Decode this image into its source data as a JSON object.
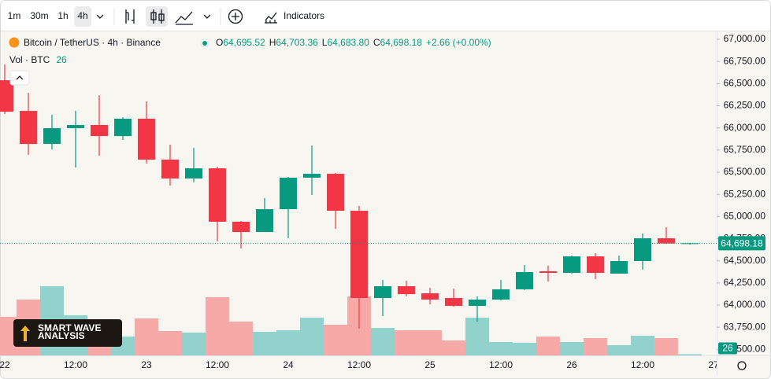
{
  "toolbar": {
    "intervals": [
      "1m",
      "30m",
      "1h",
      "4h"
    ],
    "indicators": "Indicators"
  },
  "chart_data": {
    "type": "candlestick",
    "title": "Bitcoin / TetherUS · 4h · Binance",
    "legend": {
      "o_key": "O",
      "o": "64,695.52",
      "h_key": "H",
      "h": "64,703.36",
      "l_key": "L",
      "l": "64,683.80",
      "c_key": "C",
      "c": "64,698.18",
      "change": "+2.66 (+0.00%)",
      "vol_label": "Vol · BTC"
    },
    "open": [
      66538,
      66192,
      65819,
      65997,
      66033,
      65908,
      66104,
      65642,
      65429,
      65544,
      64941,
      64825,
      65083,
      65438,
      65482,
      65065,
      64080,
      64213,
      64133,
      64080,
      63991,
      64062,
      64178,
      64382,
      64364,
      64550,
      64355,
      64497,
      64754,
      64695.52
    ],
    "high": [
      66716,
      66396,
      66148,
      66192,
      66370,
      66121,
      66299,
      65811,
      65775,
      65562,
      64950,
      65207,
      65447,
      65802,
      65491,
      65118,
      64284,
      64275,
      64195,
      64186,
      64098,
      64284,
      64453,
      64444,
      64559,
      64586,
      64559,
      64808,
      64880,
      64703.36
    ],
    "low": [
      66157,
      65695,
      65757,
      65553,
      65686,
      65864,
      65598,
      65349,
      65385,
      64719,
      64639,
      64825,
      64754,
      65243,
      64861,
      63734,
      63876,
      64098,
      64009,
      63982,
      63813,
      64053,
      64169,
      64266,
      64355,
      64293,
      64355,
      64399,
      64690,
      64683.8
    ],
    "close": [
      66183,
      65819,
      65997,
      66033,
      65908,
      66104,
      65642,
      65429,
      65544,
      64941,
      64825,
      65083,
      65438,
      65482,
      65065,
      64080,
      64213,
      64124,
      64062,
      63991,
      64062,
      64178,
      64373,
      64364,
      64550,
      64364,
      64497,
      64754,
      64695.52,
      64698.18
    ],
    "volume": [
      833,
      1207,
      1496,
      867,
      714,
      408,
      799,
      527,
      493,
      1258,
      731,
      510,
      544,
      816,
      663,
      1275,
      595,
      544,
      544,
      323,
      816,
      289,
      272,
      408,
      289,
      374,
      221,
      425,
      374,
      26
    ],
    "up_color": "#089981",
    "down_color": "#f23645",
    "volume_up_color": "#92d2cc",
    "volume_down_color": "#f7a9a7",
    "ylim": [
      63432,
      67089
    ],
    "yticks": [
      {
        "value": 63500,
        "label": "63,500.00"
      },
      {
        "value": 63750,
        "label": "63,750.00"
      },
      {
        "value": 64000,
        "label": "64,000.00"
      },
      {
        "value": 64250,
        "label": "64,250.00"
      },
      {
        "value": 64500,
        "label": "64,500.00"
      },
      {
        "value": 64750,
        "label": "64,750.00"
      },
      {
        "value": 65000,
        "label": "65,000.00"
      },
      {
        "value": 65250,
        "label": "65,250.00"
      },
      {
        "value": 65500,
        "label": "65,500.00"
      },
      {
        "value": 65750,
        "label": "65,750.00"
      },
      {
        "value": 66000,
        "label": "66,000.00"
      },
      {
        "value": 66250,
        "label": "66,250.00"
      },
      {
        "value": 66500,
        "label": "66,500.00"
      },
      {
        "value": 66750,
        "label": "66,750.00"
      },
      {
        "value": 67000,
        "label": "67,000.00"
      }
    ],
    "vol_lim": [
      0,
      7000
    ],
    "xticks": [
      {
        "value": 0,
        "label": "22"
      },
      {
        "value": 3,
        "label": "12:00"
      },
      {
        "value": 6,
        "label": "23"
      },
      {
        "value": 9,
        "label": "12:00"
      },
      {
        "value": 12,
        "label": "24"
      },
      {
        "value": 15,
        "label": "12:00"
      },
      {
        "value": 18,
        "label": "25"
      },
      {
        "value": 21,
        "label": "12:00"
      },
      {
        "value": 24,
        "label": "26"
      },
      {
        "value": 27,
        "label": "12:00"
      },
      {
        "value": 30,
        "label": "27"
      }
    ],
    "last_price": {
      "value": 64698.18,
      "label": "64,698.18"
    }
  },
  "watermark": {
    "line1": "SMART WAVE",
    "line2": "ANALYSIS"
  }
}
